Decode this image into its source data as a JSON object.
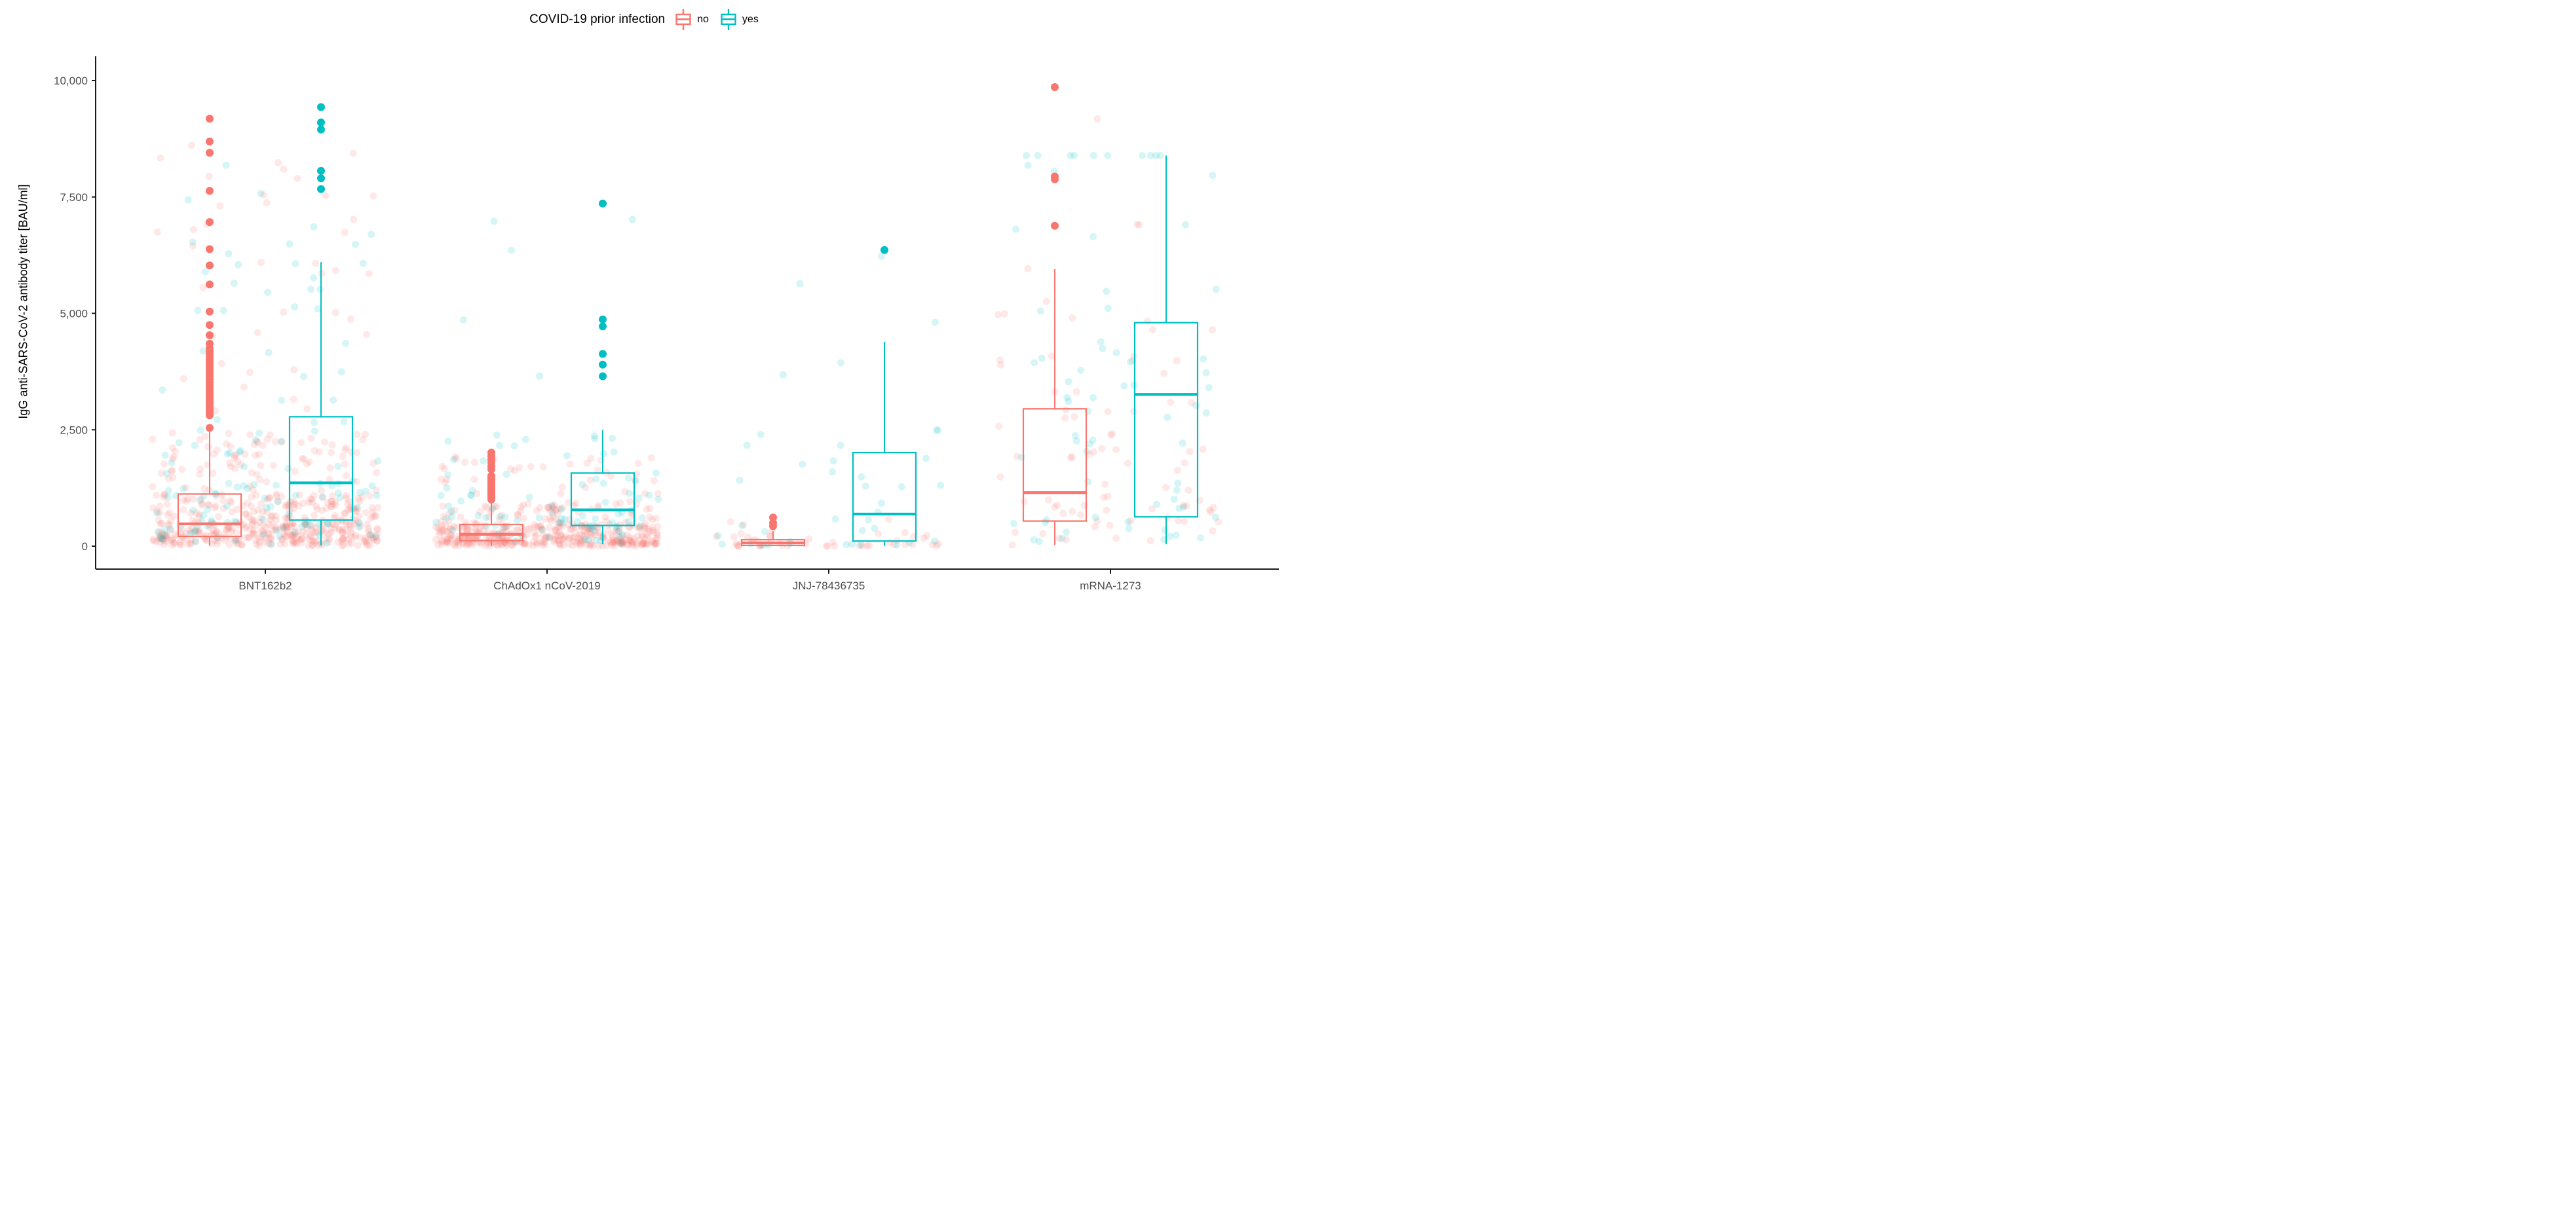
{
  "figure": {
    "legend": {
      "title": "COVID-19 prior infection",
      "items": [
        {
          "label": "no",
          "color": "#F8766D"
        },
        {
          "label": "yes",
          "color": "#00BFC4"
        }
      ]
    },
    "y_axis": {
      "title": "IgG anti-SARS-CoV-2 antibody titer [BAU/ml]",
      "tick_labels": [
        "0",
        "2,500",
        "5,000",
        "7,500",
        "10,000"
      ],
      "tick_values": [
        0,
        2500,
        5000,
        7500,
        10000
      ],
      "range": [
        0,
        10000
      ]
    },
    "x_axis": {
      "categories": [
        "BNT162b2",
        "ChAdOx1 nCoV-2019",
        "JNJ-78436735",
        "mRNA-1273"
      ]
    },
    "colors": {
      "axis_line": "#1a1a1a",
      "tick_text": "#4d4d4d"
    }
  },
  "chart_data": {
    "type": "boxplot",
    "title": "COVID-19 prior infection",
    "categories": [
      "BNT162b2",
      "ChAdOx1 nCoV-2019",
      "JNJ-78436735",
      "mRNA-1273"
    ],
    "xlabel": "",
    "ylabel": "IgG anti-SARS-CoV-2 antibody titer [BAU/ml]",
    "ylim": [
      0,
      10000
    ],
    "legend_position": "top",
    "grid": false,
    "series": [
      {
        "name": "no",
        "color": "#F8766D",
        "boxes": [
          {
            "category": "BNT162b2",
            "min": 10,
            "q1": 210,
            "median": 480,
            "q3": 1120,
            "max": 2450,
            "outliers": [
              2540,
              2810,
              2870,
              2930,
              2990,
              3050,
              3110,
              3170,
              3230,
              3290,
              3350,
              3410,
              3470,
              3530,
              3590,
              3650,
              3710,
              3770,
              3830,
              3890,
              3950,
              4010,
              4070,
              4130,
              4190,
              4250,
              4350,
              4530,
              4750,
              5040,
              5620,
              6030,
              6380,
              6960,
              7630,
              8450,
              8690,
              9180
            ],
            "n_jitter": 540
          },
          {
            "category": "ChAdOx1 nCoV-2019",
            "min": 5,
            "q1": 120,
            "median": 255,
            "q3": 465,
            "max": 930,
            "outliers": [
              1000,
              1050,
              1090,
              1130,
              1170,
              1210,
              1250,
              1290,
              1330,
              1370,
              1410,
              1450,
              1510,
              1650,
              1720,
              1790,
              1860,
              1930,
              2010
            ],
            "n_jitter": 470
          },
          {
            "category": "JNJ-78436735",
            "min": 0,
            "q1": 15,
            "median": 70,
            "q3": 140,
            "max": 320,
            "outliers": [
              430,
              500,
              615
            ],
            "n_jitter": 50
          },
          {
            "category": "mRNA-1273",
            "min": 25,
            "q1": 540,
            "median": 1150,
            "q3": 2950,
            "max": 5950,
            "outliers": [
              6880,
              7880,
              7940,
              9860
            ],
            "n_jitter": 80
          }
        ]
      },
      {
        "name": "yes",
        "color": "#00BFC4",
        "boxes": [
          {
            "category": "BNT162b2",
            "min": 20,
            "q1": 560,
            "median": 1360,
            "q3": 2780,
            "max": 6100,
            "outliers": [
              7670,
              7900,
              8060,
              8950,
              9100,
              9430
            ],
            "n_jitter": 130
          },
          {
            "category": "ChAdOx1 nCoV-2019",
            "min": 40,
            "q1": 445,
            "median": 780,
            "q3": 1570,
            "max": 2490,
            "outliers": [
              3650,
              3900,
              4130,
              4720,
              4870,
              7360
            ],
            "n_jitter": 90
          },
          {
            "category": "JNJ-78436735",
            "min": 5,
            "q1": 110,
            "median": 690,
            "q3": 2010,
            "max": 4390,
            "outliers": [
              6360
            ],
            "n_jitter": 40
          },
          {
            "category": "mRNA-1273",
            "min": 40,
            "q1": 630,
            "median": 3260,
            "q3": 4800,
            "max": 8390,
            "outliers": [],
            "n_jitter": 70
          }
        ]
      }
    ],
    "jitter": {
      "alpha": 0.16,
      "radius": 5.5,
      "half_width": 172,
      "seed": 42
    }
  }
}
